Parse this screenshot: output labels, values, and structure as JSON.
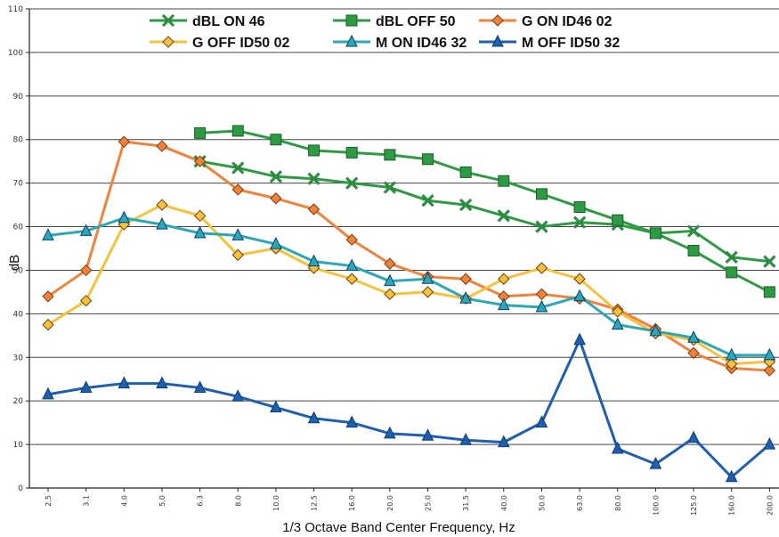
{
  "chart_data": {
    "type": "line",
    "xlabel": "1/3 Octave Band Center Frequency, Hz",
    "ylabel": "dB",
    "ylim": [
      0,
      110
    ],
    "yticks": [
      "0",
      "10",
      "20",
      "30",
      "40",
      "50",
      "60",
      "70",
      "80",
      "90",
      "100",
      "110"
    ],
    "categories": [
      "2.5",
      "3.1",
      "4.0",
      "5.0",
      "6.3",
      "8.0",
      "10.0",
      "12.5",
      "16.0",
      "20.0",
      "25.0",
      "31.5",
      "40.0",
      "50.0",
      "63.0",
      "80.0",
      "100.0",
      "125.0",
      "160.0",
      "200.0"
    ],
    "grid": "horizontal",
    "legend": "top",
    "series": [
      {
        "name": "dBL ON 46",
        "color": "#2e9a43",
        "marker": "x",
        "values": [
          null,
          null,
          null,
          null,
          75,
          73.5,
          71.5,
          71,
          70,
          69,
          66,
          65,
          62.5,
          60,
          61,
          60.5,
          58.5,
          59,
          53,
          52
        ]
      },
      {
        "name": "dBL OFF 50",
        "color": "#2e9a43",
        "marker": "square",
        "values": [
          null,
          null,
          null,
          null,
          81.5,
          82,
          80,
          77.5,
          77,
          76.5,
          75.5,
          72.5,
          70.5,
          67.5,
          64.5,
          61.5,
          58.5,
          54.5,
          49.5,
          45
        ]
      },
      {
        "name": "G ON ID46 02",
        "color": "#f0823a",
        "marker": "diamond",
        "values": [
          44,
          50,
          79.5,
          78.5,
          75,
          68.5,
          66.5,
          64,
          57,
          51.5,
          48.5,
          48,
          44,
          44.5,
          43.5,
          41,
          36.5,
          31,
          27.5,
          27
        ]
      },
      {
        "name": "G OFF ID50 02",
        "color": "#f5c23c",
        "marker": "diamond",
        "values": [
          37.5,
          43,
          60.5,
          65,
          62.5,
          53.5,
          55,
          50.5,
          48,
          44.5,
          45,
          43.5,
          48,
          50.5,
          48,
          40.5,
          35.5,
          34,
          28.5,
          29
        ]
      },
      {
        "name": "M ON ID46 32",
        "color": "#2aa8b8",
        "marker": "triangle",
        "values": [
          58,
          59,
          62,
          60.5,
          58.5,
          58,
          56,
          52,
          51,
          47.5,
          48,
          43.5,
          42,
          41.5,
          44,
          37.5,
          36,
          34.5,
          30.5,
          30.5
        ]
      },
      {
        "name": "M OFF ID50 32",
        "color": "#1f5fb0",
        "marker": "triangle",
        "values": [
          21.5,
          23,
          24,
          24,
          23,
          21,
          18.5,
          16,
          15,
          12.5,
          12,
          11,
          10.5,
          15,
          34,
          9,
          5.5,
          11.5,
          2.5,
          10
        ]
      }
    ]
  }
}
